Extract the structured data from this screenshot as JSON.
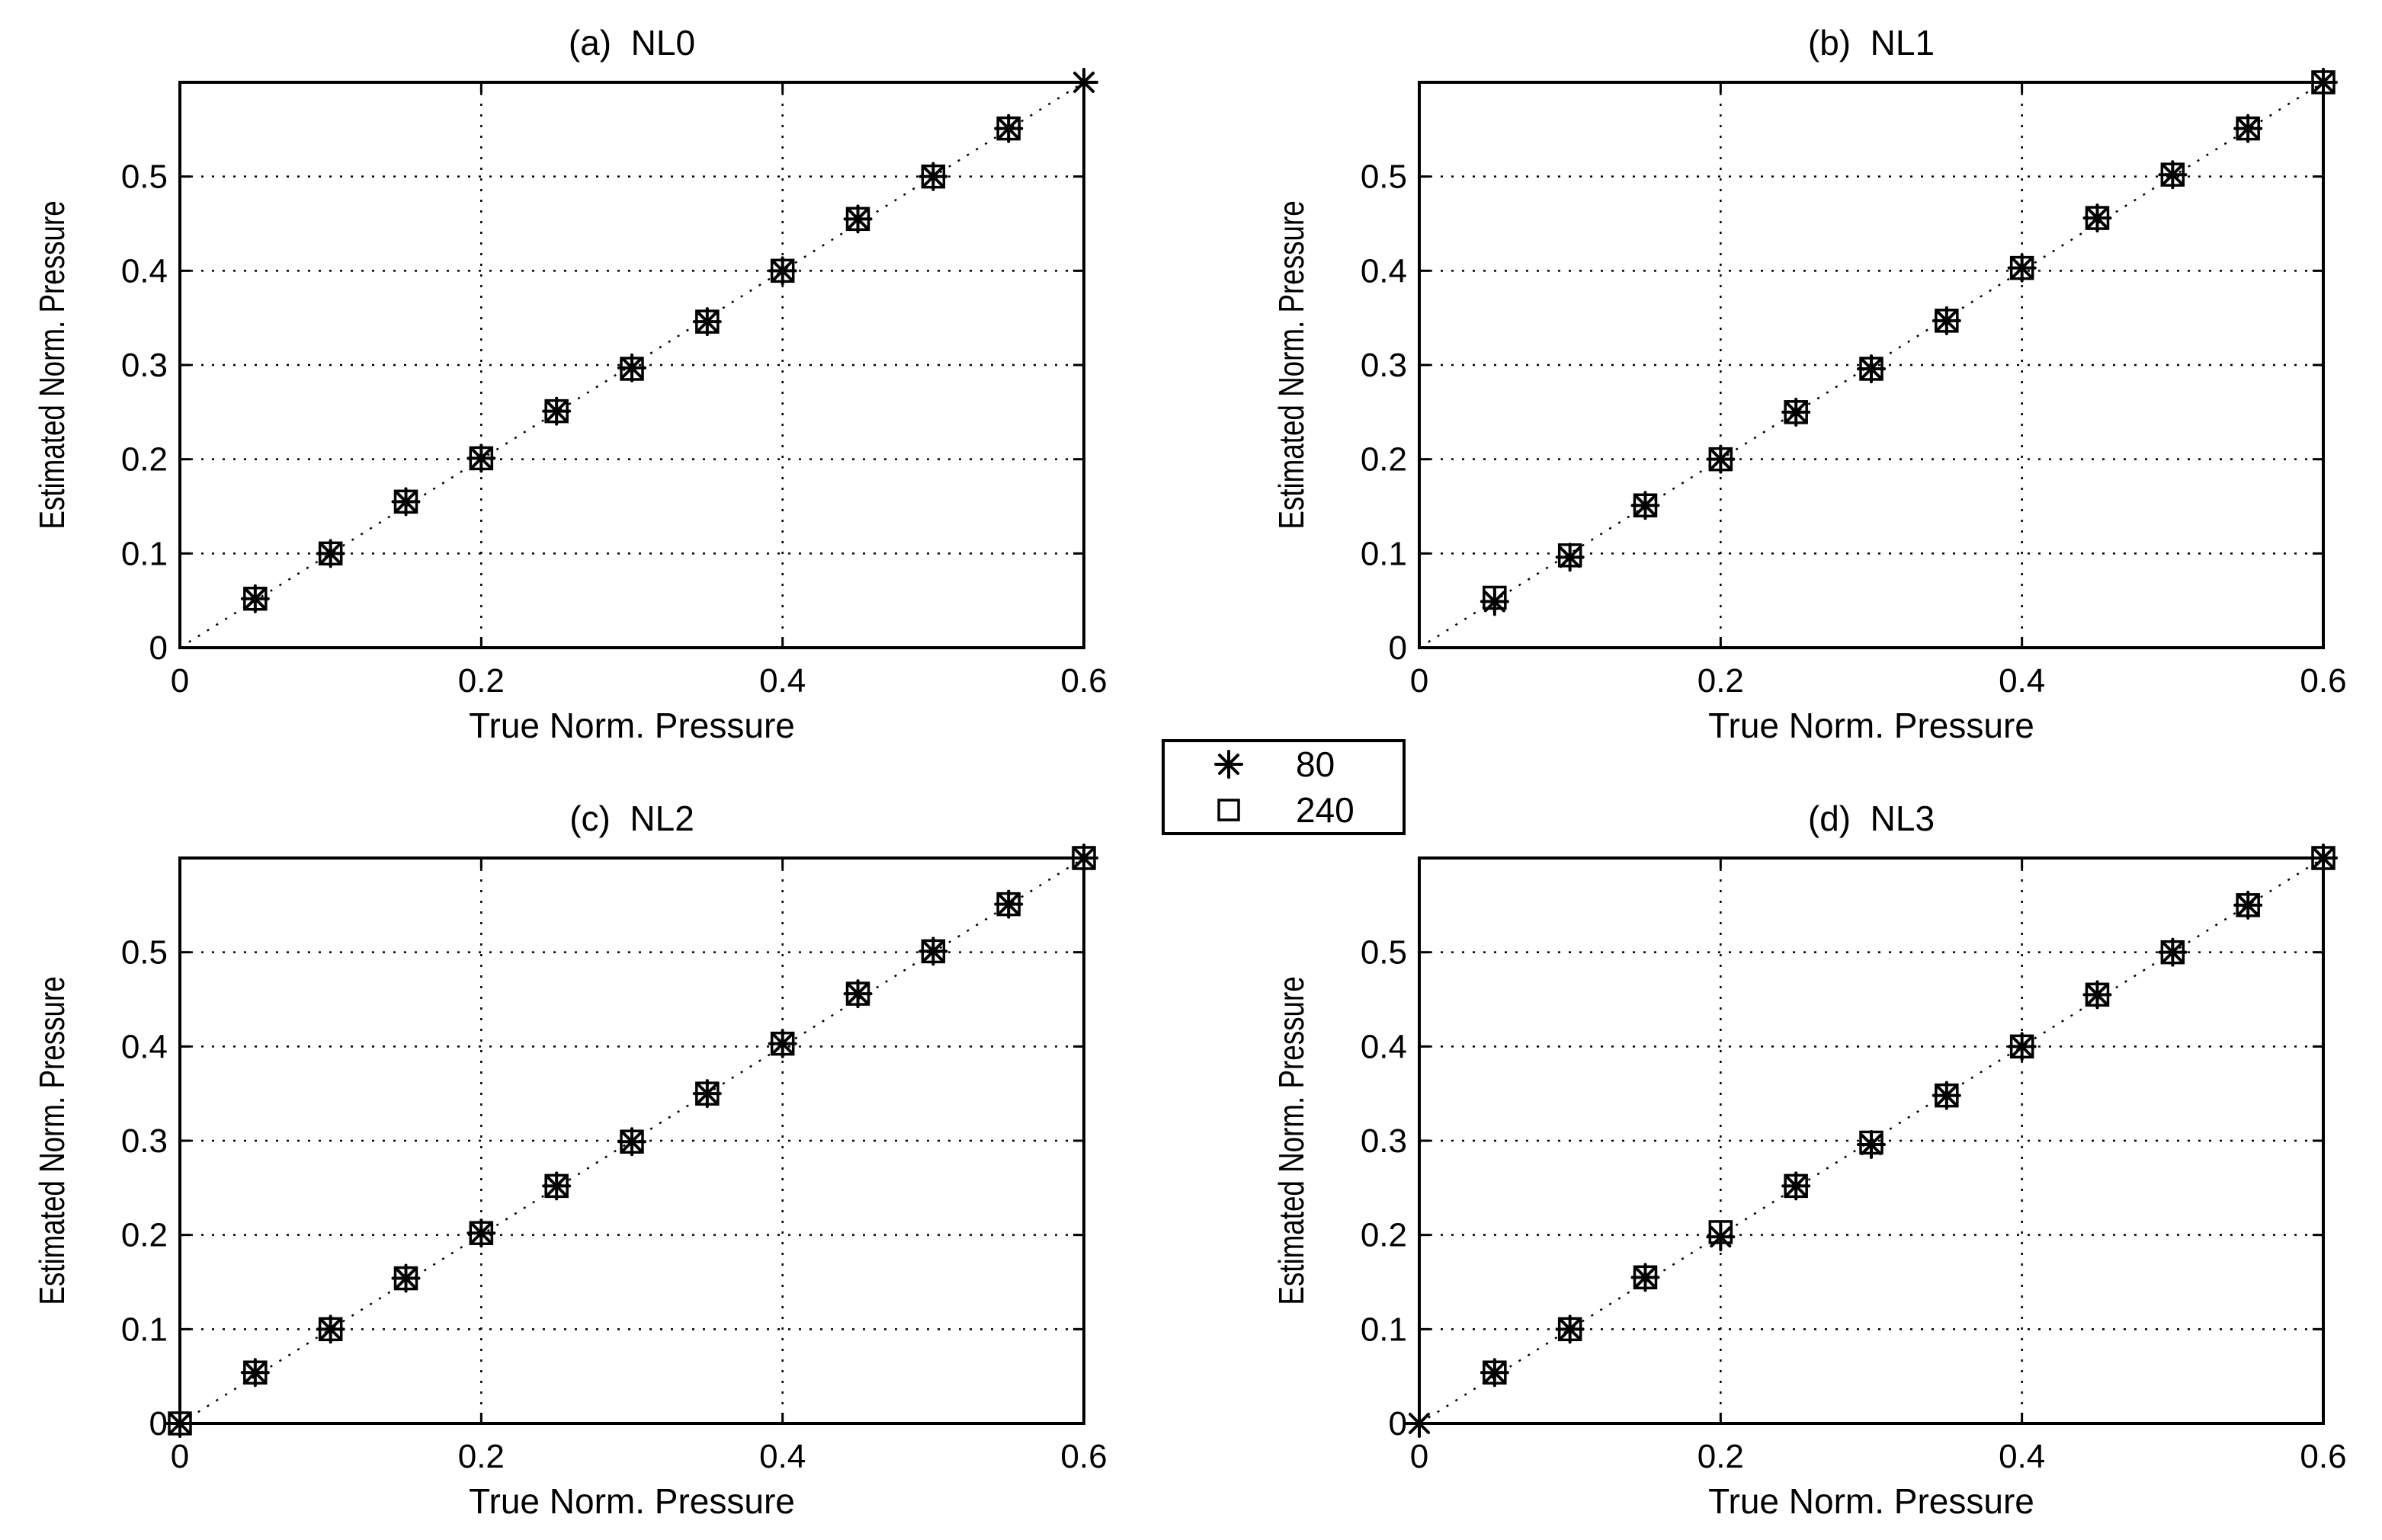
{
  "chart_data": [
    {
      "type": "scatter",
      "title": "(a)  NL0",
      "xlabel": "True Norm. Pressure",
      "ylabel": "Estimated Norm. Pressure",
      "xlim": [
        0,
        0.6
      ],
      "ylim": [
        0,
        0.6
      ],
      "xticks": [
        "0",
        "0.2",
        "0.4",
        "0.6"
      ],
      "yticks": [
        "0",
        "0.1",
        "0.2",
        "0.3",
        "0.4",
        "0.5"
      ],
      "grid": true,
      "reference_line": "identity (dotted)",
      "series": [
        {
          "name": "80",
          "marker": "asterisk",
          "x": [
            0.05,
            0.1,
            0.15,
            0.2,
            0.25,
            0.3,
            0.35,
            0.4,
            0.45,
            0.5,
            0.55,
            0.6
          ],
          "y": [
            0.052,
            0.1,
            0.155,
            0.201,
            0.251,
            0.297,
            0.346,
            0.4,
            0.455,
            0.5,
            0.551,
            0.6
          ]
        },
        {
          "name": "240",
          "marker": "square",
          "x": [
            0.05,
            0.1,
            0.15,
            0.2,
            0.25,
            0.3,
            0.35,
            0.4,
            0.45,
            0.5,
            0.55
          ],
          "y": [
            0.052,
            0.1,
            0.155,
            0.201,
            0.251,
            0.296,
            0.346,
            0.4,
            0.455,
            0.5,
            0.551
          ]
        }
      ]
    },
    {
      "type": "scatter",
      "title": "(b)  NL1",
      "xlabel": "True Norm. Pressure",
      "ylabel": "Estimated Norm. Pressure",
      "xlim": [
        0,
        0.6
      ],
      "ylim": [
        0,
        0.6
      ],
      "xticks": [
        "0",
        "0.2",
        "0.4",
        "0.6"
      ],
      "yticks": [
        "0",
        "0.1",
        "0.2",
        "0.3",
        "0.4",
        "0.5"
      ],
      "grid": true,
      "reference_line": "identity (dotted)",
      "series": [
        {
          "name": "80",
          "marker": "asterisk",
          "x": [
            0.05,
            0.1,
            0.15,
            0.2,
            0.25,
            0.3,
            0.35,
            0.4,
            0.45,
            0.5,
            0.55,
            0.6
          ],
          "y": [
            0.049,
            0.096,
            0.151,
            0.2,
            0.25,
            0.296,
            0.347,
            0.403,
            0.456,
            0.502,
            0.551,
            0.6
          ]
        },
        {
          "name": "240",
          "marker": "square",
          "x": [
            0.05,
            0.1,
            0.15,
            0.2,
            0.25,
            0.3,
            0.35,
            0.4,
            0.45,
            0.5,
            0.55,
            0.6
          ],
          "y": [
            0.053,
            0.098,
            0.151,
            0.2,
            0.25,
            0.296,
            0.347,
            0.403,
            0.456,
            0.502,
            0.551,
            0.6
          ]
        }
      ]
    },
    {
      "type": "scatter",
      "title": "(c)  NL2",
      "xlabel": "True Norm. Pressure",
      "ylabel": "Estimated Norm. Pressure",
      "xlim": [
        0,
        0.6
      ],
      "ylim": [
        0,
        0.6
      ],
      "xticks": [
        "0",
        "0.2",
        "0.4",
        "0.6"
      ],
      "yticks": [
        "0",
        "0.1",
        "0.2",
        "0.3",
        "0.4",
        "0.5"
      ],
      "grid": true,
      "reference_line": "identity (dotted)",
      "series": [
        {
          "name": "80",
          "marker": "asterisk",
          "x": [
            0.0,
            0.05,
            0.1,
            0.15,
            0.2,
            0.25,
            0.3,
            0.35,
            0.4,
            0.45,
            0.5,
            0.55,
            0.6
          ],
          "y": [
            0.0,
            0.054,
            0.1,
            0.154,
            0.202,
            0.252,
            0.299,
            0.35,
            0.403,
            0.456,
            0.501,
            0.551,
            0.6
          ]
        },
        {
          "name": "240",
          "marker": "square",
          "x": [
            0.0,
            0.05,
            0.1,
            0.15,
            0.2,
            0.25,
            0.3,
            0.35,
            0.4,
            0.45,
            0.5,
            0.55,
            0.6
          ],
          "y": [
            0.0,
            0.054,
            0.1,
            0.154,
            0.202,
            0.252,
            0.299,
            0.35,
            0.403,
            0.456,
            0.501,
            0.551,
            0.6
          ]
        }
      ]
    },
    {
      "type": "scatter",
      "title": "(d)  NL3",
      "xlabel": "True Norm. Pressure",
      "ylabel": "Estimated Norm. Pressure",
      "xlim": [
        0,
        0.6
      ],
      "ylim": [
        0,
        0.6
      ],
      "xticks": [
        "0",
        "0.2",
        "0.4",
        "0.6"
      ],
      "yticks": [
        "0",
        "0.1",
        "0.2",
        "0.3",
        "0.4",
        "0.5"
      ],
      "grid": true,
      "reference_line": "identity (dotted)",
      "series": [
        {
          "name": "80",
          "marker": "asterisk",
          "x": [
            0.0,
            0.05,
            0.1,
            0.15,
            0.2,
            0.25,
            0.3,
            0.35,
            0.4,
            0.45,
            0.5,
            0.55,
            0.6
          ],
          "y": [
            0.0,
            0.054,
            0.1,
            0.155,
            0.198,
            0.252,
            0.296,
            0.348,
            0.4,
            0.455,
            0.5,
            0.55,
            0.6
          ]
        },
        {
          "name": "240",
          "marker": "square",
          "x": [
            0.05,
            0.1,
            0.15,
            0.2,
            0.25,
            0.3,
            0.35,
            0.4,
            0.45,
            0.5,
            0.55,
            0.6
          ],
          "y": [
            0.054,
            0.1,
            0.155,
            0.203,
            0.252,
            0.298,
            0.348,
            0.4,
            0.455,
            0.5,
            0.55,
            0.6
          ]
        }
      ]
    }
  ],
  "legend": {
    "placement": "center",
    "entries": [
      {
        "label": "80",
        "marker": "asterisk"
      },
      {
        "label": "240",
        "marker": "square"
      }
    ]
  }
}
